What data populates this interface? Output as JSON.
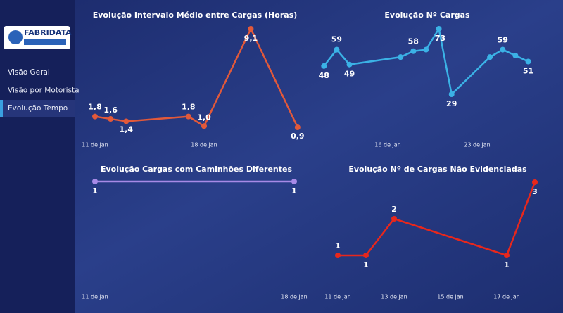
{
  "sidebar": {
    "logo": "FABRIDATA",
    "menu": [
      "Visão Geral",
      "Visão por Motorista",
      "Evolução Tempo"
    ],
    "active": 2
  },
  "chart_data": [
    {
      "type": "line",
      "title": "Evolução Intervalo Médio entre Cargas (Horas)",
      "color": "#e2593a",
      "x": [
        11,
        12,
        13,
        17,
        18,
        21,
        24
      ],
      "values": [
        1.8,
        1.6,
        1.4,
        1.8,
        1.0,
        9.1,
        0.9
      ],
      "value_labels": [
        "1,8",
        "1,6",
        "1,4",
        "1,8",
        "1,0",
        "9,1",
        "0,9"
      ],
      "xticks": [
        {
          "value": 11,
          "label": "11 de jan"
        },
        {
          "value": 18,
          "label": "18 de jan"
        }
      ]
    },
    {
      "type": "line",
      "title": "Evolução Nº Cargas",
      "color": "#3bb2e6",
      "x": [
        11,
        12,
        13,
        17,
        18,
        19,
        20,
        21,
        24,
        25,
        26,
        27
      ],
      "values": [
        48,
        59,
        49,
        54,
        58,
        59,
        73,
        29,
        54,
        59,
        55,
        51
      ],
      "value_labels": [
        "48",
        "59",
        "49",
        null,
        "58",
        null,
        "73",
        "29",
        null,
        "59",
        null,
        "51"
      ],
      "xticks": [
        {
          "value": 16,
          "label": "16 de jan"
        },
        {
          "value": 23,
          "label": "23 de jan"
        }
      ]
    },
    {
      "type": "line",
      "title": "Evolução Cargas com Caminhões Diferentes",
      "color": "#a78ae6",
      "x": [
        11,
        18
      ],
      "values": [
        1,
        1
      ],
      "xticks": [
        {
          "value": 11,
          "label": "11 de jan"
        },
        {
          "value": 18,
          "label": "18 de jan"
        }
      ]
    },
    {
      "type": "line",
      "title": "Evolução Nº de Cargas Não Evidenciadas",
      "color": "#e8271c",
      "x": [
        11,
        12,
        13,
        17,
        18
      ],
      "values": [
        1,
        1,
        2,
        1,
        3
      ],
      "xticks": [
        {
          "value": 11,
          "label": "11 de jan"
        },
        {
          "value": 13,
          "label": "13 de jan"
        },
        {
          "value": 15,
          "label": "15 de jan"
        },
        {
          "value": 17,
          "label": "17 de jan"
        }
      ]
    }
  ]
}
